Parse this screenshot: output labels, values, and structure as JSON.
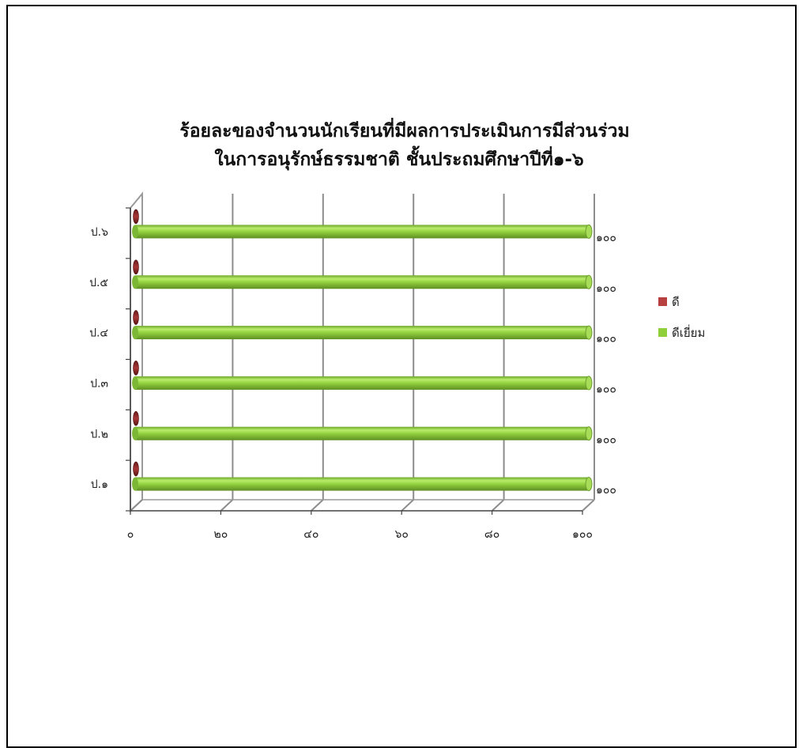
{
  "chart_data": {
    "type": "bar",
    "orientation": "horizontal",
    "title": "ร้อยละของจำนวนนักเรียนที่มีผลการประเมินการมีส่วนร่วม ในการอนุรักษ์ธรรมชาติ ชั้นประถมศึกษาปีที่๑-๖",
    "title_lines": [
      "ร้อยละของจำนวนนักเรียนที่มีผลการประเมินการมีส่วนร่วม",
      "ในการอนุรักษ์ธรรมชาติ ชั้นประถมศึกษาปีที่๑-๖"
    ],
    "categories": [
      "ป.๑",
      "ป.๒",
      "ป.๓",
      "ป.๔",
      "ป.๕",
      "ป.๖"
    ],
    "series": [
      {
        "name": "ดี",
        "values": [
          0,
          0,
          0,
          0,
          0,
          0
        ],
        "color": "#b5403f"
      },
      {
        "name": "ดีเยี่ยม",
        "values": [
          100,
          100,
          100,
          100,
          100,
          100
        ],
        "color": "#8ecf3a"
      }
    ],
    "data_labels": [
      "๑๐๐",
      "๑๐๐",
      "๑๐๐",
      "๑๐๐",
      "๑๐๐",
      "๑๐๐"
    ],
    "xlim": [
      0,
      100
    ],
    "x_ticks": [
      0,
      20,
      40,
      60,
      80,
      100
    ],
    "x_tick_labels": [
      "๐",
      "๒๐",
      "๔๐",
      "๖๐",
      "๘๐",
      "๑๐๐"
    ],
    "grid": true,
    "legend_position": "right",
    "style": "3d-cylinder"
  }
}
